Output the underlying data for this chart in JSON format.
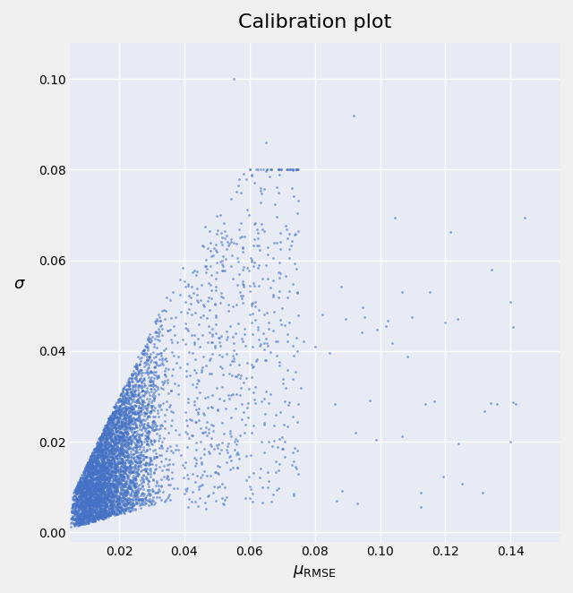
{
  "title": "Calibration plot",
  "xlabel": "$\\mu_{\\mathrm{RMSE}}$",
  "ylabel": "$\\sigma$",
  "xlim": [
    0.005,
    0.155
  ],
  "ylim": [
    -0.002,
    0.108
  ],
  "xticks": [
    0.02,
    0.04,
    0.06,
    0.08,
    0.1,
    0.12,
    0.14
  ],
  "yticks": [
    0.0,
    0.02,
    0.04,
    0.06,
    0.08,
    0.1
  ],
  "dot_color": "#4472C4",
  "dot_alpha": 0.6,
  "dot_size": 4,
  "bg_color": "#E8EBF3",
  "grid_color": "#FFFFFF",
  "figsize": [
    6.4,
    6.62
  ],
  "dpi": 100,
  "seed": 42,
  "n_main": 5000,
  "n_outliers": 80
}
